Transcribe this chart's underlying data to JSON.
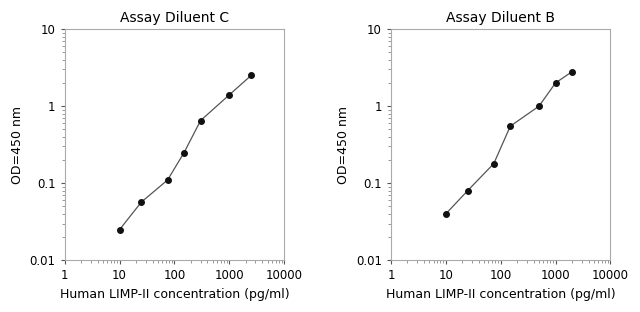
{
  "left_title": "Assay Diluent C",
  "right_title": "Assay Diluent B",
  "xlabel": "Human LIMP-II concentration (pg/ml)",
  "ylabel": "OD=450 nm",
  "left_x": [
    10,
    25,
    75,
    150,
    300,
    1000,
    2500
  ],
  "left_y": [
    0.025,
    0.057,
    0.11,
    0.25,
    0.65,
    1.4,
    2.5
  ],
  "right_x": [
    10,
    25,
    75,
    150,
    500,
    1000,
    2000
  ],
  "right_y": [
    0.04,
    0.08,
    0.18,
    0.55,
    1.0,
    2.0,
    2.8
  ],
  "xlim": [
    1,
    10000
  ],
  "ylim": [
    0.01,
    10
  ],
  "line_color": "#555555",
  "marker_color": "#111111",
  "title_color": "#000000",
  "label_color": "#000000",
  "tick_color": "#000000",
  "background_color": "#ffffff",
  "title_fontsize": 10,
  "label_fontsize": 9,
  "tick_fontsize": 8.5
}
